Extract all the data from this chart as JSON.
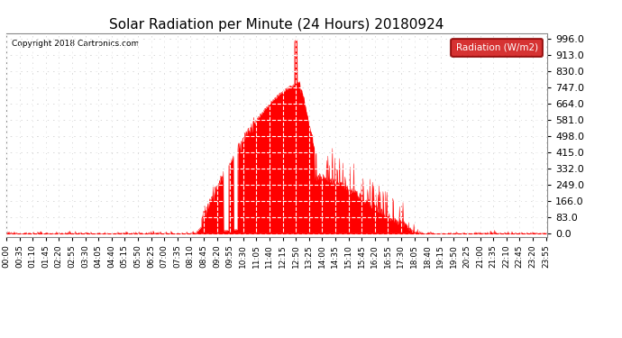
{
  "title": "Solar Radiation per Minute (24 Hours) 20180924",
  "copyright_text": "Copyright 2018 Cartronics.com",
  "legend_label": "Radiation (W/m2)",
  "bg_color": "#ffffff",
  "plot_bg_color": "#ffffff",
  "fill_color": "#ff0000",
  "line_color": "#ff0000",
  "grid_color": "#bbbbbb",
  "zero_line_color": "#ff0000",
  "yticks": [
    0.0,
    83.0,
    166.0,
    249.0,
    332.0,
    415.0,
    498.0,
    581.0,
    664.0,
    747.0,
    830.0,
    913.0,
    996.0
  ],
  "ymax": 1020,
  "ymin": -15,
  "total_minutes": 1440,
  "sunrise_minute": 500,
  "sunset_minute": 1120,
  "peak_minute": 770,
  "peak_value": 996
}
